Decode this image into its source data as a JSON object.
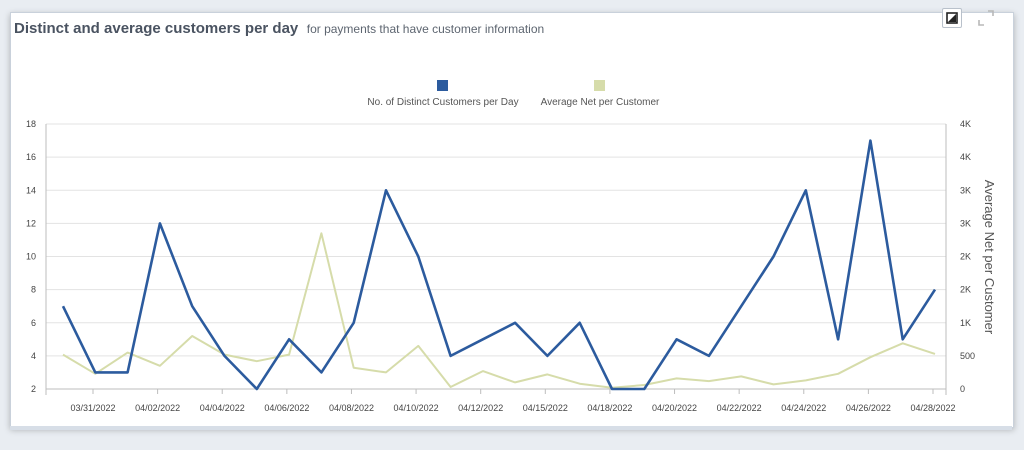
{
  "header": {
    "title": "Distinct and average customers per day",
    "subtitle": "for payments that have customer information"
  },
  "toolbar": {
    "export_icon": "chart-export-icon",
    "expand_icon": "expand-icon"
  },
  "colors": {
    "series1": "#2c5b9e",
    "series2": "#d6dcaa",
    "grid": "#e3e3e3"
  },
  "chart_data": {
    "type": "line",
    "legend_position": "top-center",
    "grid": true,
    "y_right_label": "Average Net per Customer",
    "ylim_left": [
      2,
      18
    ],
    "ylim_right": [
      0,
      4000
    ],
    "y_left_ticks": [
      "2",
      "4",
      "6",
      "8",
      "10",
      "12",
      "14",
      "16",
      "18"
    ],
    "y_right_ticks": [
      "0",
      "500",
      "1K",
      "2K",
      "2K",
      "3K",
      "3K",
      "4K",
      "4K"
    ],
    "x_tick_labels": [
      "03/31/2022",
      "04/02/2022",
      "04/04/2022",
      "04/06/2022",
      "04/08/2022",
      "04/10/2022",
      "04/12/2022",
      "04/15/2022",
      "04/18/2022",
      "04/20/2022",
      "04/22/2022",
      "04/24/2022",
      "04/26/2022",
      "04/28/2022"
    ],
    "series": [
      {
        "name": "No. of Distinct Customers per Day",
        "axis": "left",
        "values": [
          7,
          3,
          3,
          12,
          7,
          4,
          2,
          5,
          3,
          6,
          14,
          10,
          4,
          5,
          6,
          4,
          6,
          2,
          2,
          5,
          4,
          7,
          10,
          14,
          5,
          17,
          5,
          8
        ]
      },
      {
        "name": "Average Net per Customer",
        "axis": "right",
        "values": [
          520,
          230,
          550,
          350,
          800,
          520,
          420,
          520,
          2350,
          320,
          250,
          650,
          30,
          270,
          100,
          220,
          80,
          20,
          60,
          160,
          120,
          190,
          70,
          130,
          230,
          480,
          690,
          530
        ]
      }
    ]
  }
}
